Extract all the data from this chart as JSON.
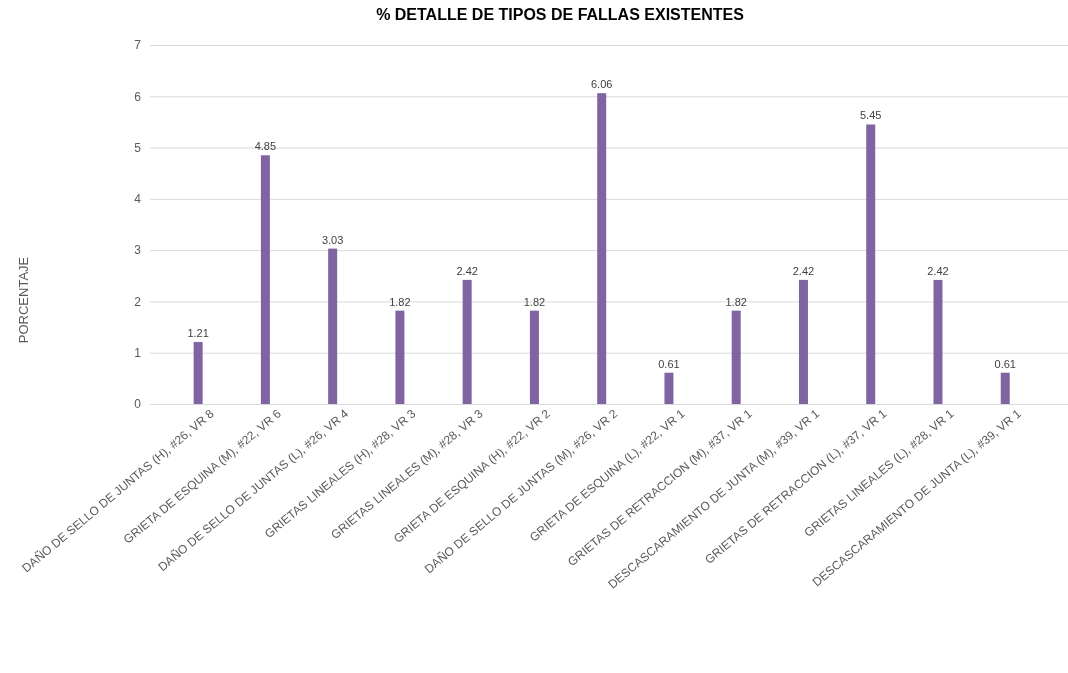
{
  "chart_data": {
    "type": "bar",
    "title": "% DETALLE DE TIPOS DE FALLAS EXISTENTES",
    "ylabel": "PORCENTAJE",
    "categories": [
      "DAÑO DE SELLO DE JUNTAS (H), #26, VR 8",
      "GRIETA DE ESQUINA (M), #22, VR 6",
      "DAÑO DE SELLO DE JUNTAS (L), #26, VR 4",
      "GRIETAS LINEALES (H), #28, VR 3",
      "GRIETAS LINEALES (M), #28, VR 3",
      "GRIETA DE ESQUINA (H), #22, VR 2",
      "DAÑO DE SELLO DE JUNTAS (M), #26, VR 2",
      "GRIETA DE ESQUINA (L), #22, VR 1",
      "GRIETAS DE RETRACCION (M), #37, VR 1",
      "DESCASCARAMIENTO DE JUNTA (M), #39, VR 1",
      "GRIETAS DE RETRACCION (L), #37, VR 1",
      "GRIETAS LINEALES (L), #28, VR 1",
      "DESCASCARAMIENTO DE JUNTA (L), #39, VR 1"
    ],
    "values": [
      1.21,
      4.85,
      3.03,
      1.82,
      2.42,
      1.82,
      6.06,
      0.61,
      1.82,
      2.42,
      5.45,
      2.42,
      0.61
    ],
    "color": "#8064a2",
    "ylim": [
      0,
      7
    ],
    "yticks": [
      0,
      1,
      2,
      3,
      4,
      5,
      6,
      7
    ],
    "grid": "y",
    "data_labels": true
  }
}
